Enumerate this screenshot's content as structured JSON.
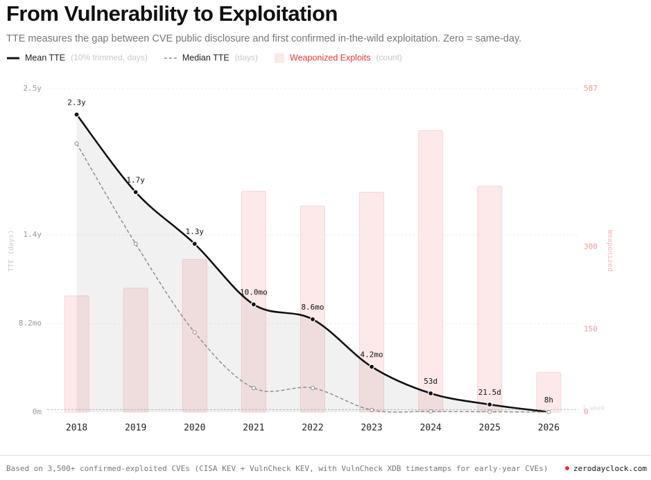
{
  "chart_data": {
    "type": "combo",
    "title": "From Vulnerability to Exploitation",
    "subtitle": "TTE measures the gap between CVE public disclosure and first confirmed in-the-wild exploitation. Zero = same-day.",
    "y_label": "TTE (days)",
    "y2_label": "Weaponized",
    "categories": [
      "2018",
      "2019",
      "2020",
      "2021",
      "2022",
      "2023",
      "2024",
      "2025",
      "2026"
    ],
    "series": [
      {
        "name": "Mean TTE",
        "note": "(10% trimmed, days)",
        "type": "line",
        "color": "#111111",
        "values": [
          840,
          621,
          475,
          304,
          262,
          128,
          53,
          21.5,
          0.33
        ],
        "value_labels": [
          "2.3y",
          "1.7y",
          "1.3y",
          "10.0mo",
          "8.6mo",
          "4.2mo",
          "53d",
          "21.5d",
          "8h"
        ]
      },
      {
        "name": "Median TTE",
        "note": "(days)",
        "type": "line",
        "dashed": true,
        "color": "#888888",
        "values": [
          758,
          475,
          225,
          68,
          68,
          6,
          2,
          1,
          0.1
        ]
      },
      {
        "name": "Weaponized Exploits",
        "note": "(count)",
        "type": "bar",
        "axis": "y2",
        "color": "#fde9e9",
        "values": [
          211,
          225,
          277,
          401,
          374,
          399,
          511,
          410,
          72
        ]
      }
    ],
    "ylim": [
      0,
      913
    ],
    "yticks": [
      {
        "value": 0,
        "label": "0m"
      },
      {
        "value": 250,
        "label": "8.2mo"
      },
      {
        "value": 500,
        "label": "1.4y"
      },
      {
        "value": 913,
        "label": "2.5y"
      }
    ],
    "y2lim": [
      0,
      587
    ],
    "y2ticks": [
      0,
      150,
      300,
      587
    ],
    "reference_line": {
      "value": 7,
      "label": "1 week"
    },
    "grid": true,
    "footnote": "Based on 3,500+ confirmed-exploited CVEs (CISA KEV + VulnCheck KEV, with VulnCheck XDB timestamps for early-year CVEs)",
    "source": "zerodayclock.com"
  }
}
